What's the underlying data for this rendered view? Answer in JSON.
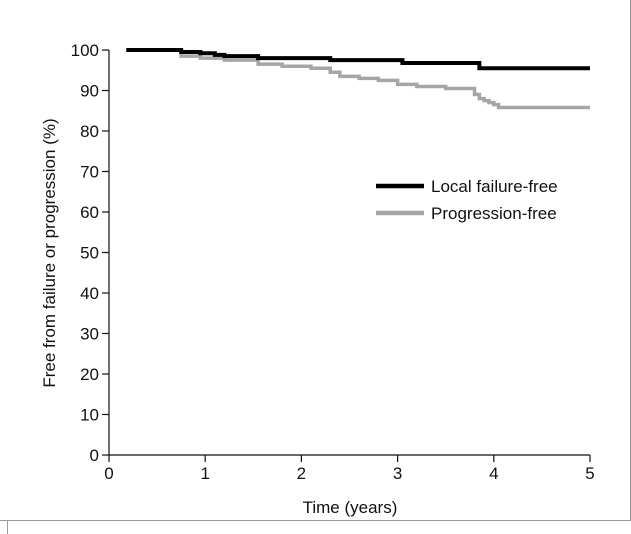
{
  "chart_data": {
    "type": "line",
    "title": "",
    "xlabel": "Time (years)",
    "ylabel": "Free from failure or progression (%)",
    "xlim": [
      0,
      5
    ],
    "ylim": [
      0,
      100
    ],
    "x_ticks": [
      "0",
      "1",
      "2",
      "3",
      "4",
      "5"
    ],
    "y_ticks": [
      "0",
      "10",
      "20",
      "30",
      "40",
      "50",
      "60",
      "70",
      "80",
      "90",
      "100"
    ],
    "grid": false,
    "legend_position": "right",
    "series": [
      {
        "name": "Local failure-free",
        "color": "#000000",
        "step": true,
        "x": [
          0.18,
          0.75,
          0.95,
          1.1,
          1.2,
          1.55,
          2.3,
          3.05,
          3.85,
          5.0
        ],
        "y": [
          100,
          99.5,
          99.2,
          98.8,
          98.5,
          98.0,
          97.5,
          96.8,
          95.5,
          95.5
        ]
      },
      {
        "name": "Progression-free",
        "color": "#a6a6a6",
        "step": true,
        "x": [
          0.18,
          0.75,
          0.95,
          1.2,
          1.55,
          1.8,
          2.1,
          2.3,
          2.4,
          2.6,
          2.8,
          3.0,
          3.2,
          3.5,
          3.8,
          3.85,
          3.9,
          3.95,
          4.0,
          4.05,
          5.0
        ],
        "y": [
          100,
          98.5,
          98.0,
          97.5,
          96.5,
          96.0,
          95.5,
          94.5,
          93.5,
          93.0,
          92.5,
          91.5,
          91.0,
          90.5,
          89.0,
          88.0,
          87.5,
          87.0,
          86.5,
          85.8,
          85.8
        ]
      }
    ]
  }
}
